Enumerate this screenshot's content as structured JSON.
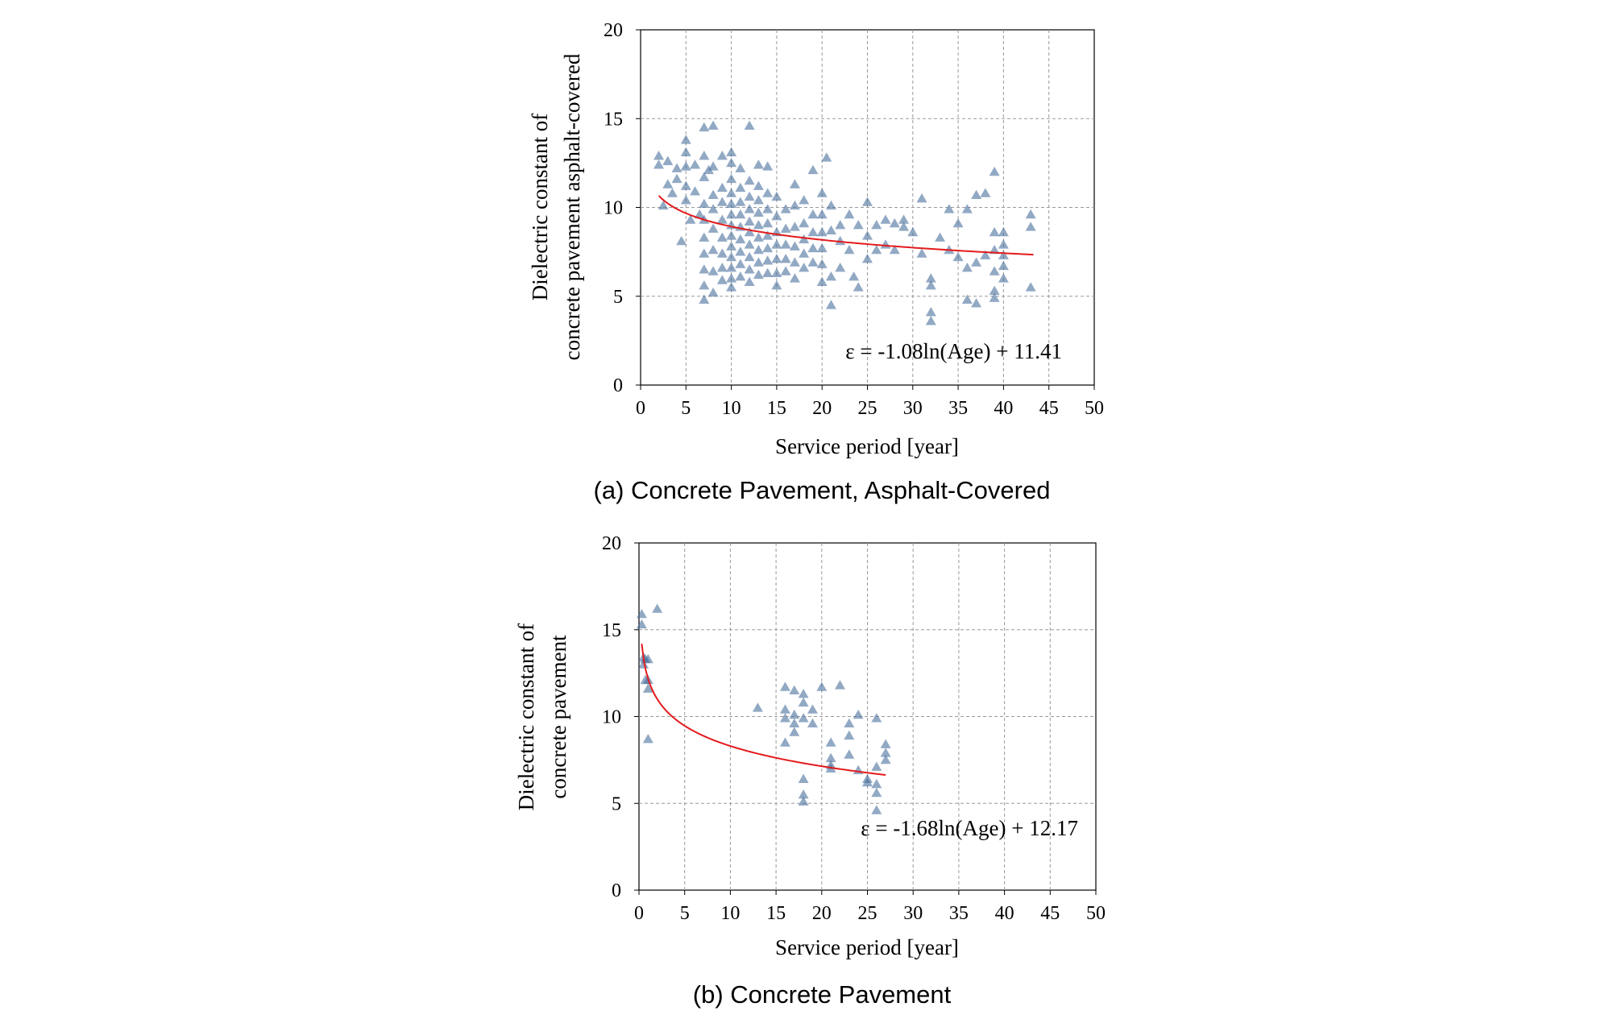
{
  "colors": {
    "marker": "#4a6f9c",
    "fit": "#e41a1c",
    "grid": "#9a9a9a",
    "axis": "#000000"
  },
  "chart_data": [
    {
      "type": "scatter",
      "caption": "(a) Concrete Pavement, Asphalt-Covered",
      "title": "",
      "xlabel": "Service period [year]",
      "ylabel_line1": "Dielectric constant of",
      "ylabel_line2": "concrete pavement asphalt-covered",
      "xlim": [
        0,
        50
      ],
      "ylim": [
        0,
        20
      ],
      "xticks": [
        0,
        5,
        10,
        15,
        20,
        25,
        30,
        35,
        40,
        45,
        50
      ],
      "yticks": [
        0,
        5,
        10,
        15,
        20
      ],
      "grid": true,
      "marker": "triangle",
      "fit": {
        "label": "ε = -1.08ln(Age) + 11.41",
        "a": -1.08,
        "b": 11.41,
        "x_range": [
          2,
          43.3
        ]
      },
      "points": [
        [
          2,
          12.9
        ],
        [
          2,
          12.4
        ],
        [
          2.5,
          10.1
        ],
        [
          3,
          11.3
        ],
        [
          3,
          12.6
        ],
        [
          3.5,
          10.8
        ],
        [
          4,
          12.2
        ],
        [
          4,
          11.6
        ],
        [
          4.5,
          8.1
        ],
        [
          5,
          13.8
        ],
        [
          5,
          13.1
        ],
        [
          5,
          12.3
        ],
        [
          5,
          11.2
        ],
        [
          5,
          10.4
        ],
        [
          5.5,
          9.3
        ],
        [
          6,
          12.4
        ],
        [
          6,
          10.9
        ],
        [
          6.5,
          9.6
        ],
        [
          7,
          14.5
        ],
        [
          7,
          12.9
        ],
        [
          7,
          11.7
        ],
        [
          7,
          10.2
        ],
        [
          7,
          9.3
        ],
        [
          7,
          8.3
        ],
        [
          7,
          7.4
        ],
        [
          7,
          6.5
        ],
        [
          7,
          5.6
        ],
        [
          7,
          4.8
        ],
        [
          7.5,
          12.1
        ],
        [
          8,
          14.6
        ],
        [
          8,
          12.3
        ],
        [
          8,
          10.7
        ],
        [
          8,
          9.9
        ],
        [
          8,
          8.8
        ],
        [
          8,
          7.6
        ],
        [
          8,
          6.4
        ],
        [
          8,
          5.2
        ],
        [
          9,
          12.9
        ],
        [
          9,
          11.1
        ],
        [
          9,
          10.3
        ],
        [
          9,
          9.3
        ],
        [
          9,
          8.3
        ],
        [
          9,
          7.4
        ],
        [
          9,
          6.6
        ],
        [
          9,
          5.9
        ],
        [
          10,
          13.1
        ],
        [
          10,
          12.5
        ],
        [
          10,
          11.6
        ],
        [
          10,
          10.8
        ],
        [
          10,
          10.2
        ],
        [
          10,
          9.6
        ],
        [
          10,
          9.0
        ],
        [
          10,
          8.4
        ],
        [
          10,
          7.8
        ],
        [
          10,
          7.2
        ],
        [
          10,
          6.6
        ],
        [
          10,
          6.0
        ],
        [
          10,
          5.5
        ],
        [
          11,
          12.2
        ],
        [
          11,
          11.1
        ],
        [
          11,
          10.3
        ],
        [
          11,
          9.6
        ],
        [
          11,
          8.9
        ],
        [
          11,
          8.2
        ],
        [
          11,
          7.5
        ],
        [
          11,
          6.8
        ],
        [
          11,
          6.1
        ],
        [
          12,
          14.6
        ],
        [
          12,
          11.5
        ],
        [
          12,
          10.6
        ],
        [
          12,
          9.9
        ],
        [
          12,
          9.2
        ],
        [
          12,
          8.6
        ],
        [
          12,
          7.9
        ],
        [
          12,
          7.2
        ],
        [
          12,
          6.5
        ],
        [
          12,
          5.8
        ],
        [
          13,
          12.4
        ],
        [
          13,
          11.2
        ],
        [
          13,
          10.4
        ],
        [
          13,
          9.7
        ],
        [
          13,
          9.0
        ],
        [
          13,
          8.3
        ],
        [
          13,
          7.6
        ],
        [
          13,
          6.9
        ],
        [
          13,
          6.2
        ],
        [
          14,
          12.3
        ],
        [
          14,
          10.8
        ],
        [
          14,
          9.9
        ],
        [
          14,
          9.1
        ],
        [
          14,
          8.4
        ],
        [
          14,
          7.7
        ],
        [
          14,
          7.0
        ],
        [
          14,
          6.3
        ],
        [
          15,
          10.6
        ],
        [
          15,
          9.5
        ],
        [
          15,
          8.6
        ],
        [
          15,
          7.9
        ],
        [
          15,
          7.1
        ],
        [
          15,
          6.3
        ],
        [
          15,
          5.6
        ],
        [
          16,
          9.9
        ],
        [
          16,
          8.8
        ],
        [
          16,
          7.9
        ],
        [
          16,
          7.1
        ],
        [
          16,
          6.4
        ],
        [
          17,
          11.3
        ],
        [
          17,
          10.1
        ],
        [
          17,
          8.9
        ],
        [
          17,
          7.8
        ],
        [
          17,
          6.9
        ],
        [
          17,
          6.0
        ],
        [
          18,
          10.4
        ],
        [
          18,
          9.1
        ],
        [
          18,
          8.2
        ],
        [
          18,
          7.4
        ],
        [
          18,
          6.6
        ],
        [
          19,
          12.1
        ],
        [
          19,
          9.6
        ],
        [
          19,
          8.6
        ],
        [
          19,
          7.7
        ],
        [
          19,
          6.9
        ],
        [
          20,
          10.8
        ],
        [
          20,
          9.6
        ],
        [
          20,
          8.6
        ],
        [
          20,
          7.7
        ],
        [
          20,
          6.8
        ],
        [
          20,
          5.8
        ],
        [
          20.5,
          12.8
        ],
        [
          21,
          10.1
        ],
        [
          21,
          8.7
        ],
        [
          21,
          6.1
        ],
        [
          21,
          4.5
        ],
        [
          22,
          9.0
        ],
        [
          22,
          8.1
        ],
        [
          22,
          6.6
        ],
        [
          23,
          9.6
        ],
        [
          23,
          7.6
        ],
        [
          23.5,
          6.1
        ],
        [
          24,
          9.0
        ],
        [
          24,
          5.5
        ],
        [
          25,
          10.3
        ],
        [
          25,
          8.4
        ],
        [
          25,
          7.1
        ],
        [
          26,
          9.0
        ],
        [
          26,
          7.6
        ],
        [
          27,
          9.3
        ],
        [
          27,
          7.9
        ],
        [
          28,
          9.1
        ],
        [
          28,
          7.6
        ],
        [
          29,
          9.3
        ],
        [
          29,
          8.9
        ],
        [
          30,
          8.6
        ],
        [
          31,
          10.5
        ],
        [
          31,
          7.4
        ],
        [
          32,
          6.0
        ],
        [
          32,
          5.6
        ],
        [
          32,
          4.1
        ],
        [
          32,
          3.6
        ],
        [
          33,
          8.3
        ],
        [
          34,
          9.9
        ],
        [
          34,
          7.6
        ],
        [
          35,
          9.1
        ],
        [
          35,
          7.2
        ],
        [
          36,
          9.9
        ],
        [
          36,
          6.6
        ],
        [
          36,
          4.8
        ],
        [
          37,
          10.7
        ],
        [
          37,
          6.9
        ],
        [
          37,
          4.6
        ],
        [
          38,
          10.8
        ],
        [
          38,
          7.3
        ],
        [
          39,
          12.0
        ],
        [
          39,
          8.6
        ],
        [
          39,
          7.6
        ],
        [
          39,
          6.4
        ],
        [
          39,
          5.3
        ],
        [
          39,
          4.9
        ],
        [
          40,
          8.6
        ],
        [
          40,
          7.9
        ],
        [
          40,
          7.3
        ],
        [
          40,
          6.7
        ],
        [
          40,
          6.0
        ],
        [
          43,
          9.6
        ],
        [
          43,
          8.9
        ],
        [
          43,
          5.5
        ]
      ]
    },
    {
      "type": "scatter",
      "caption": "(b) Concrete Pavement",
      "title": "",
      "xlabel": "Service period [year]",
      "ylabel_line1": "Dielectric constant of",
      "ylabel_line2": "concrete pavement",
      "xlim": [
        0,
        50
      ],
      "ylim": [
        0,
        20
      ],
      "xticks": [
        0,
        5,
        10,
        15,
        20,
        25,
        30,
        35,
        40,
        45,
        50
      ],
      "yticks": [
        0,
        5,
        10,
        15,
        20
      ],
      "grid": true,
      "marker": "triangle",
      "fit": {
        "label": "ε = -1.68ln(Age) + 12.17",
        "a": -1.68,
        "b": 12.17,
        "x_range": [
          0.3,
          27
        ]
      },
      "points": [
        [
          0.3,
          15.9
        ],
        [
          0.3,
          15.3
        ],
        [
          0.5,
          13.4
        ],
        [
          0.5,
          13.0
        ],
        [
          0.7,
          13.3
        ],
        [
          0.7,
          12.1
        ],
        [
          1,
          13.3
        ],
        [
          1,
          12.1
        ],
        [
          1,
          11.6
        ],
        [
          1,
          8.7
        ],
        [
          2,
          16.2
        ],
        [
          13,
          10.5
        ],
        [
          16,
          11.7
        ],
        [
          16,
          10.4
        ],
        [
          16,
          9.9
        ],
        [
          16,
          8.5
        ],
        [
          17,
          11.5
        ],
        [
          17,
          10.1
        ],
        [
          17,
          9.6
        ],
        [
          17,
          9.1
        ],
        [
          18,
          11.3
        ],
        [
          18,
          10.8
        ],
        [
          18,
          9.9
        ],
        [
          18,
          6.4
        ],
        [
          18,
          5.5
        ],
        [
          18,
          5.1
        ],
        [
          19,
          10.4
        ],
        [
          19,
          9.6
        ],
        [
          20,
          11.7
        ],
        [
          21,
          8.5
        ],
        [
          21,
          7.6
        ],
        [
          21,
          7.2
        ],
        [
          21,
          7.0
        ],
        [
          22,
          11.8
        ],
        [
          23,
          9.6
        ],
        [
          23,
          8.9
        ],
        [
          23,
          7.8
        ],
        [
          24,
          10.1
        ],
        [
          24,
          6.9
        ],
        [
          25,
          6.4
        ],
        [
          25,
          6.2
        ],
        [
          26,
          9.9
        ],
        [
          26,
          7.1
        ],
        [
          26,
          6.1
        ],
        [
          26,
          5.6
        ],
        [
          26,
          4.6
        ],
        [
          27,
          8.4
        ],
        [
          27,
          7.9
        ],
        [
          27,
          7.5
        ]
      ]
    }
  ]
}
